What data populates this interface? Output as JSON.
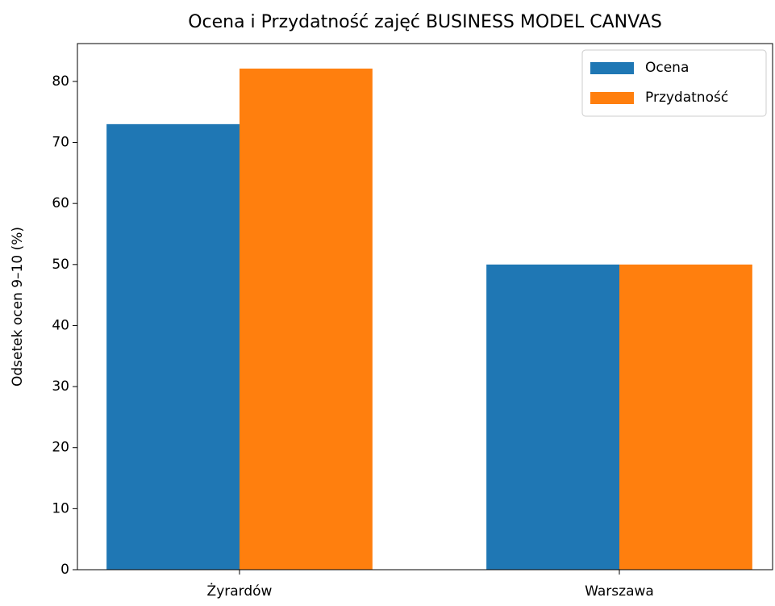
{
  "chart_data": {
    "type": "bar",
    "title": "Ocena i Przydatność zajęć BUSINESS MODEL CANVAS",
    "ylabel": "Odsetek ocen 9–10 (%)",
    "categories": [
      "Żyrardów",
      "Warszawa"
    ],
    "series": [
      {
        "name": "Ocena",
        "color": "#1f77b4",
        "values": [
          73,
          50
        ]
      },
      {
        "name": "Przydatność",
        "color": "#ff7f0e",
        "values": [
          82.1,
          50
        ]
      }
    ],
    "ylim": [
      0,
      86.2
    ],
    "yticks": [
      0,
      10,
      20,
      30,
      40,
      50,
      60,
      70,
      80
    ],
    "legend": "upper right"
  }
}
